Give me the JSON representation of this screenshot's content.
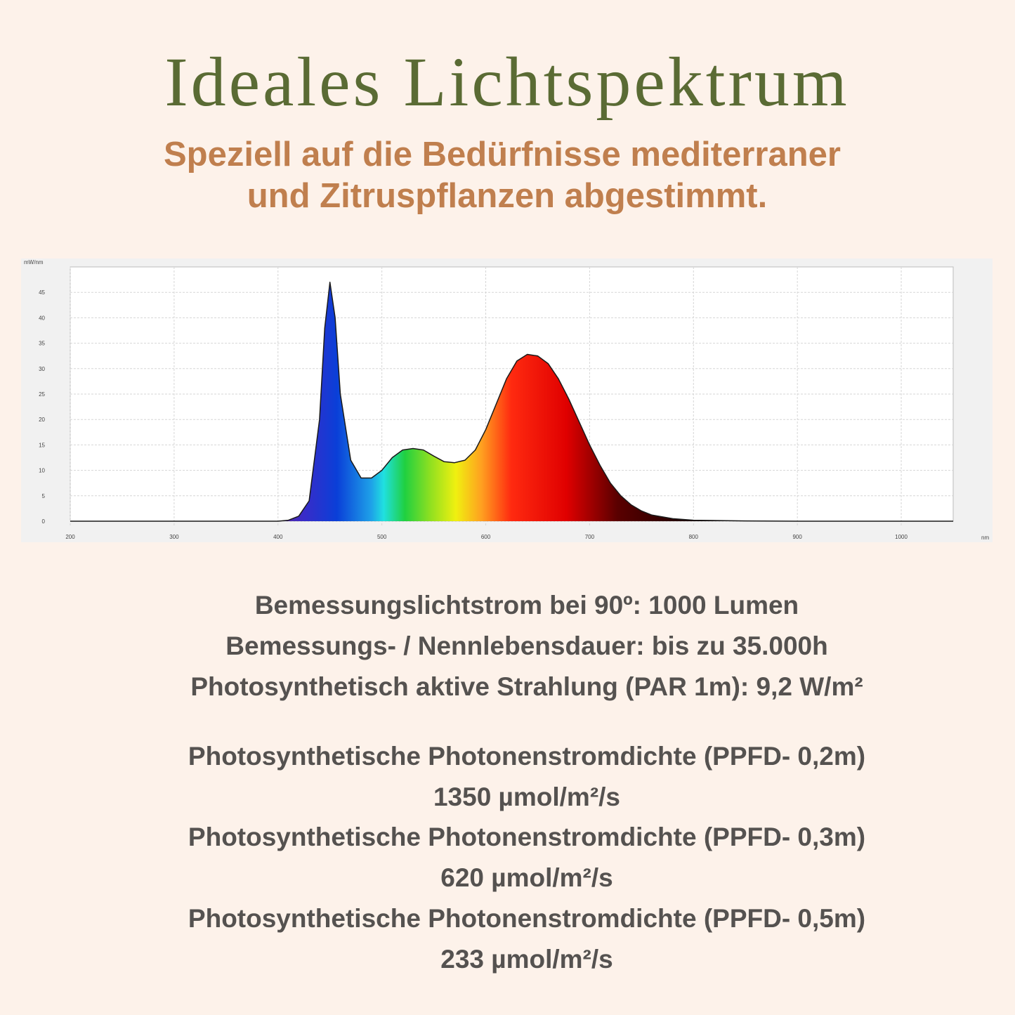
{
  "title": "Ideales Lichtspektrum",
  "subtitle": [
    "Speziell auf die Bedürfnisse mediterraner",
    "und Zitruspflanzen abgestimmt."
  ],
  "specs": [
    "Bemessungslichtstrom bei 90º: 1000 Lumen",
    "Bemessungs- / Nennlebensdauer: bis zu 35.000h",
    "Photosynthetisch aktive Strahlung (PAR 1m): 9,2 W/m²"
  ],
  "ppfd": [
    "Photosynthetische Photonenstromdichte (PPFD- 0,2m)",
    "1350 µmol/m²/s",
    "Photosynthetische Photonenstromdichte (PPFD- 0,3m)",
    "620 µmol/m²/s",
    "Photosynthetische Photonenstromdichte (PPFD- 0,5m)",
    "233 µmol/m²/s"
  ],
  "chart_data": {
    "type": "area",
    "ylabel": "mW/nm",
    "xlabel": "nm",
    "x": [
      200,
      300,
      400,
      410,
      420,
      430,
      440,
      445,
      450,
      455,
      460,
      470,
      480,
      490,
      500,
      510,
      520,
      530,
      540,
      550,
      560,
      570,
      580,
      590,
      600,
      610,
      620,
      630,
      640,
      650,
      660,
      670,
      680,
      690,
      700,
      710,
      720,
      730,
      740,
      750,
      760,
      780,
      800,
      850,
      900,
      1000,
      1050
    ],
    "values": [
      0,
      0,
      0,
      0.2,
      1,
      4,
      20,
      38,
      47,
      40,
      25,
      12,
      8.5,
      8.5,
      10,
      12.5,
      14,
      14.3,
      14,
      12.8,
      11.7,
      11.5,
      12,
      14,
      18,
      23,
      28,
      31.5,
      32.8,
      32.5,
      31,
      28,
      24,
      19.5,
      15,
      11,
      7.5,
      5,
      3.2,
      2,
      1.2,
      0.5,
      0.2,
      0.05,
      0,
      0,
      0
    ],
    "color": "#1a1a1a",
    "xlim": [
      200,
      1050
    ],
    "ylim": [
      0,
      50
    ],
    "xticks": [
      200,
      300,
      400,
      500,
      600,
      700,
      800,
      900,
      1000
    ],
    "yticks": [
      0,
      5,
      10,
      15,
      20,
      25,
      30,
      35,
      40,
      45
    ],
    "grid": true
  }
}
